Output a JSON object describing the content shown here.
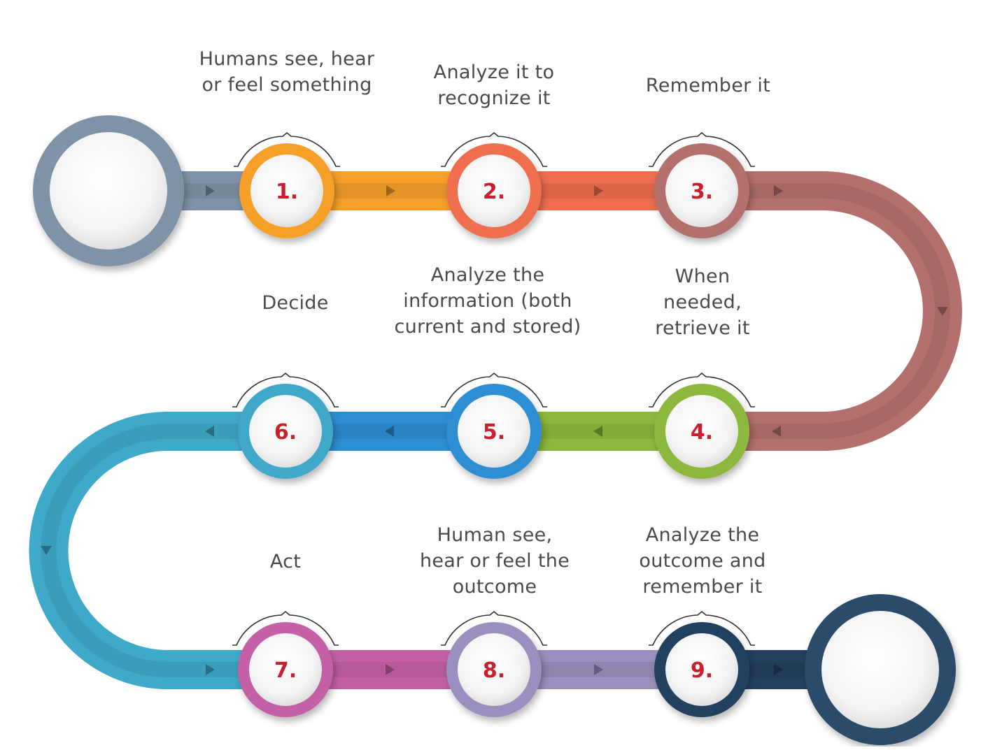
{
  "colors": {
    "start": "#7f93a6",
    "end": "#2c4b6b",
    "number_text": "#c8202f",
    "label_text": "#4a4a4a"
  },
  "steps": [
    {
      "num": "1.",
      "label": "Humans see, hear or feel something",
      "color": "#f6a02b"
    },
    {
      "num": "2.",
      "label": "Analyze it to recognize it",
      "color": "#ee6e4e"
    },
    {
      "num": "3.",
      "label": "Remember it",
      "color": "#b3706d"
    },
    {
      "num": "4.",
      "label": "When needed, retrieve it",
      "color": "#8cb83c"
    },
    {
      "num": "5.",
      "label": "Analyze the information (both current and stored)",
      "color": "#2e8ed4"
    },
    {
      "num": "6.",
      "label": "Decide",
      "color": "#3fa9c9"
    },
    {
      "num": "7.",
      "label": "Act",
      "color": "#c461a6"
    },
    {
      "num": "8.",
      "label": "Human see, hear or feel the outcome",
      "color": "#9a8fbf"
    },
    {
      "num": "9.",
      "label": "Analyze the outcome and remember it",
      "color": "#24405e"
    }
  ]
}
